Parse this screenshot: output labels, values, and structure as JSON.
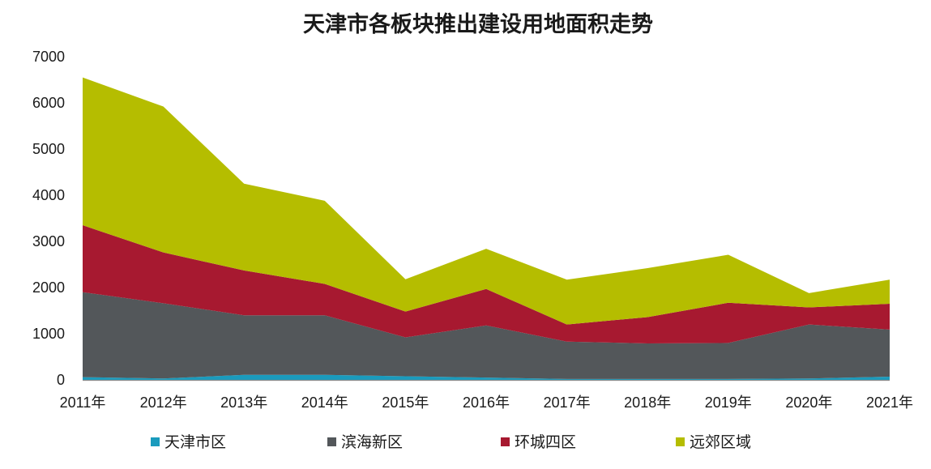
{
  "chart_data": {
    "type": "area",
    "stacked": true,
    "title": "天津市各板块推出建设用地面积走势",
    "xlabel": "",
    "ylabel": "",
    "categories": [
      "2011年",
      "2012年",
      "2013年",
      "2014年",
      "2015年",
      "2016年",
      "2017年",
      "2018年",
      "2019年",
      "2020年",
      "2021年"
    ],
    "ylim": [
      0,
      7000
    ],
    "yticks": [
      0,
      1000,
      2000,
      3000,
      4000,
      5000,
      6000,
      7000
    ],
    "grid": false,
    "legend_position": "bottom",
    "series": [
      {
        "name": "天津市区",
        "color": "#1a9bbd",
        "values": [
          60,
          30,
          110,
          110,
          80,
          50,
          20,
          20,
          20,
          30,
          70
        ]
      },
      {
        "name": "滨海新区",
        "color": "#53575a",
        "values": [
          1840,
          1630,
          1290,
          1290,
          840,
          1130,
          810,
          770,
          780,
          1170,
          1020
        ]
      },
      {
        "name": "环城四区",
        "color": "#a71930",
        "values": [
          1450,
          1100,
          970,
          680,
          560,
          790,
          370,
          570,
          870,
          370,
          560
        ]
      },
      {
        "name": "远郊区域",
        "color": "#b5bd00",
        "values": [
          3200,
          3160,
          1880,
          1800,
          700,
          870,
          970,
          1060,
          1040,
          310,
          520
        ]
      }
    ]
  }
}
